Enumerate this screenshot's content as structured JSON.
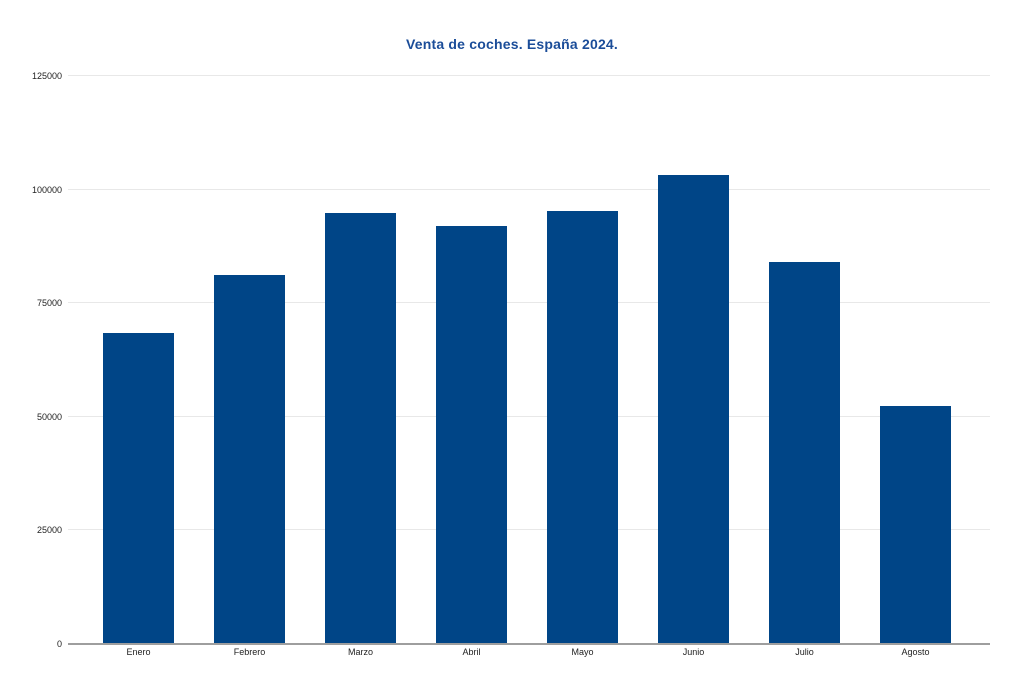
{
  "chart_data": {
    "type": "bar",
    "title": "Venta de coches. España 2024.",
    "categories": [
      "Enero",
      "Febrero",
      "Marzo",
      "Abril",
      "Mayo",
      "Junio",
      "Julio",
      "Agosto"
    ],
    "values": [
      68500,
      81100,
      94800,
      91900,
      95200,
      103200,
      84100,
      52400
    ],
    "xlabel": "",
    "ylabel": "",
    "ylim": [
      0,
      125000
    ],
    "yticks": [
      0,
      25000,
      50000,
      75000,
      100000,
      125000
    ],
    "ytick_labels": [
      "0",
      "25000",
      "50000",
      "75000",
      "100000",
      "125000"
    ],
    "grid": "horizontal",
    "legend_position": "none",
    "colors": {
      "bar": "#004587",
      "title": "#1b4d99",
      "gridline": "#e8e8e8",
      "axis_line": "#9e9e9e",
      "tick_label": "#222222",
      "background": "#ffffff"
    }
  }
}
